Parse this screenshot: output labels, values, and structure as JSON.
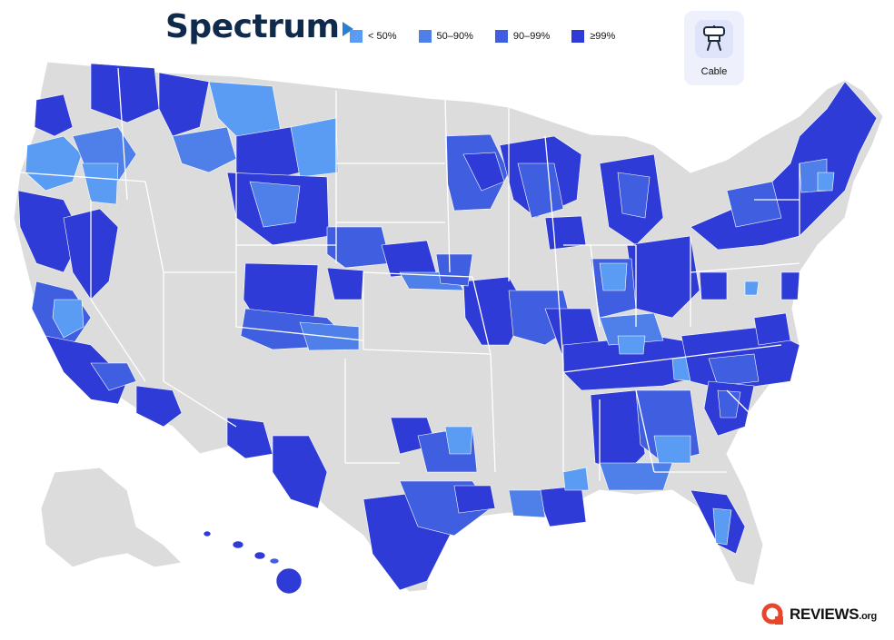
{
  "header": {
    "brand": "Spectrum"
  },
  "legend": {
    "items": [
      {
        "label": "< 50%",
        "color": "#5a9cf4"
      },
      {
        "label": "50–90%",
        "color": "#4f7fe8"
      },
      {
        "label": "90–99%",
        "color": "#3f5ee0"
      },
      {
        "label": "≥99%",
        "color": "#2f3bd6"
      }
    ]
  },
  "service_type": {
    "label": "Cable",
    "icon": "cable-connector-icon"
  },
  "map": {
    "land_color": "#dcdcdc",
    "border_color": "#ffffff"
  },
  "footer": {
    "brand_main": "REVIEWS",
    "brand_suffix": ".org",
    "brand_color": "#e8462a"
  }
}
